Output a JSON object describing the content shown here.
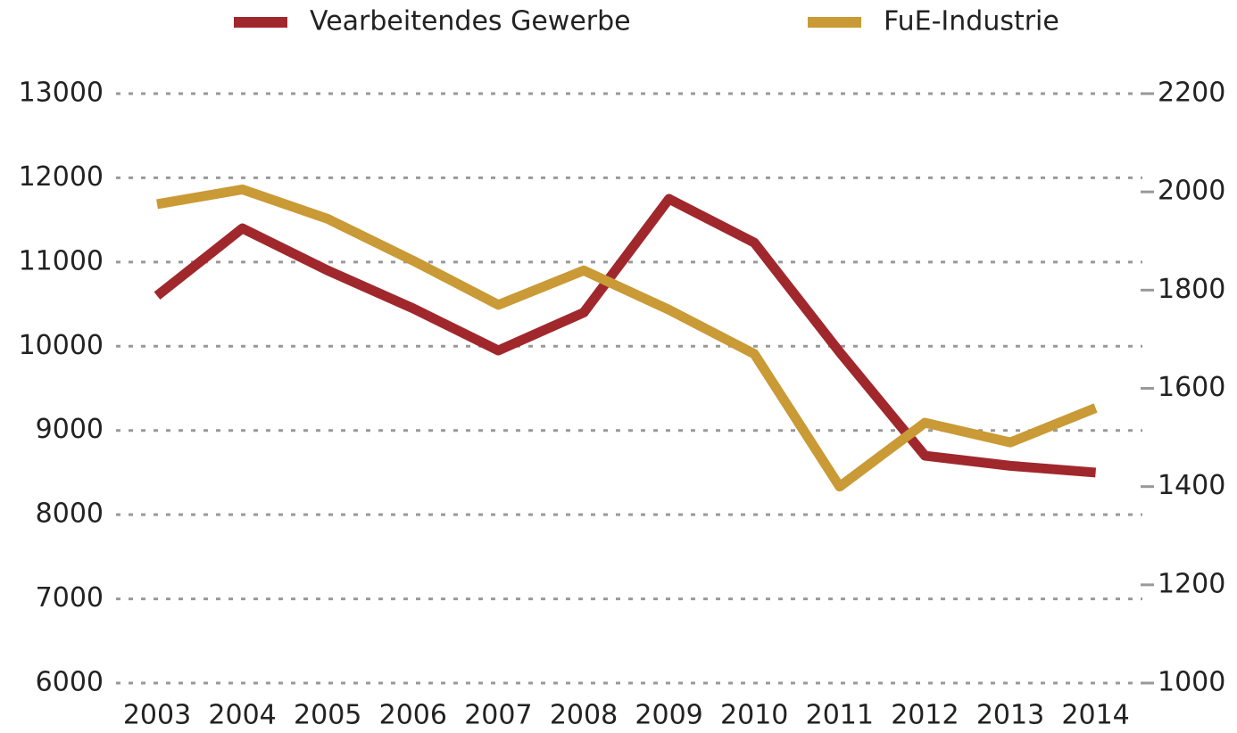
{
  "chart_data": {
    "type": "line",
    "categories": [
      "2003",
      "2004",
      "2005",
      "2006",
      "2007",
      "2008",
      "2009",
      "2010",
      "2011",
      "2012",
      "2013",
      "2014"
    ],
    "series": [
      {
        "name": "Vearbeitendes Gewerbe",
        "color": "#a0282c",
        "values": [
          10600,
          11400,
          10900,
          10450,
          9950,
          10400,
          11750,
          11230,
          9930,
          8700,
          8580,
          8500
        ]
      },
      {
        "name": "FuE-Industrie",
        "color": "#c99a35",
        "axis": "y2",
        "values": [
          1975,
          2005,
          1945,
          1860,
          1770,
          1840,
          1760,
          1670,
          1400,
          1530,
          1490,
          1560
        ]
      }
    ],
    "ylim": [
      6000,
      13000
    ],
    "yticks": [
      6000,
      7000,
      8000,
      9000,
      10000,
      11000,
      12000,
      13000
    ],
    "y2lim": [
      1000,
      2200
    ],
    "y2ticks": [
      1000,
      1200,
      1400,
      1600,
      1800,
      2000,
      2200
    ],
    "grid": true,
    "legend": "top"
  }
}
